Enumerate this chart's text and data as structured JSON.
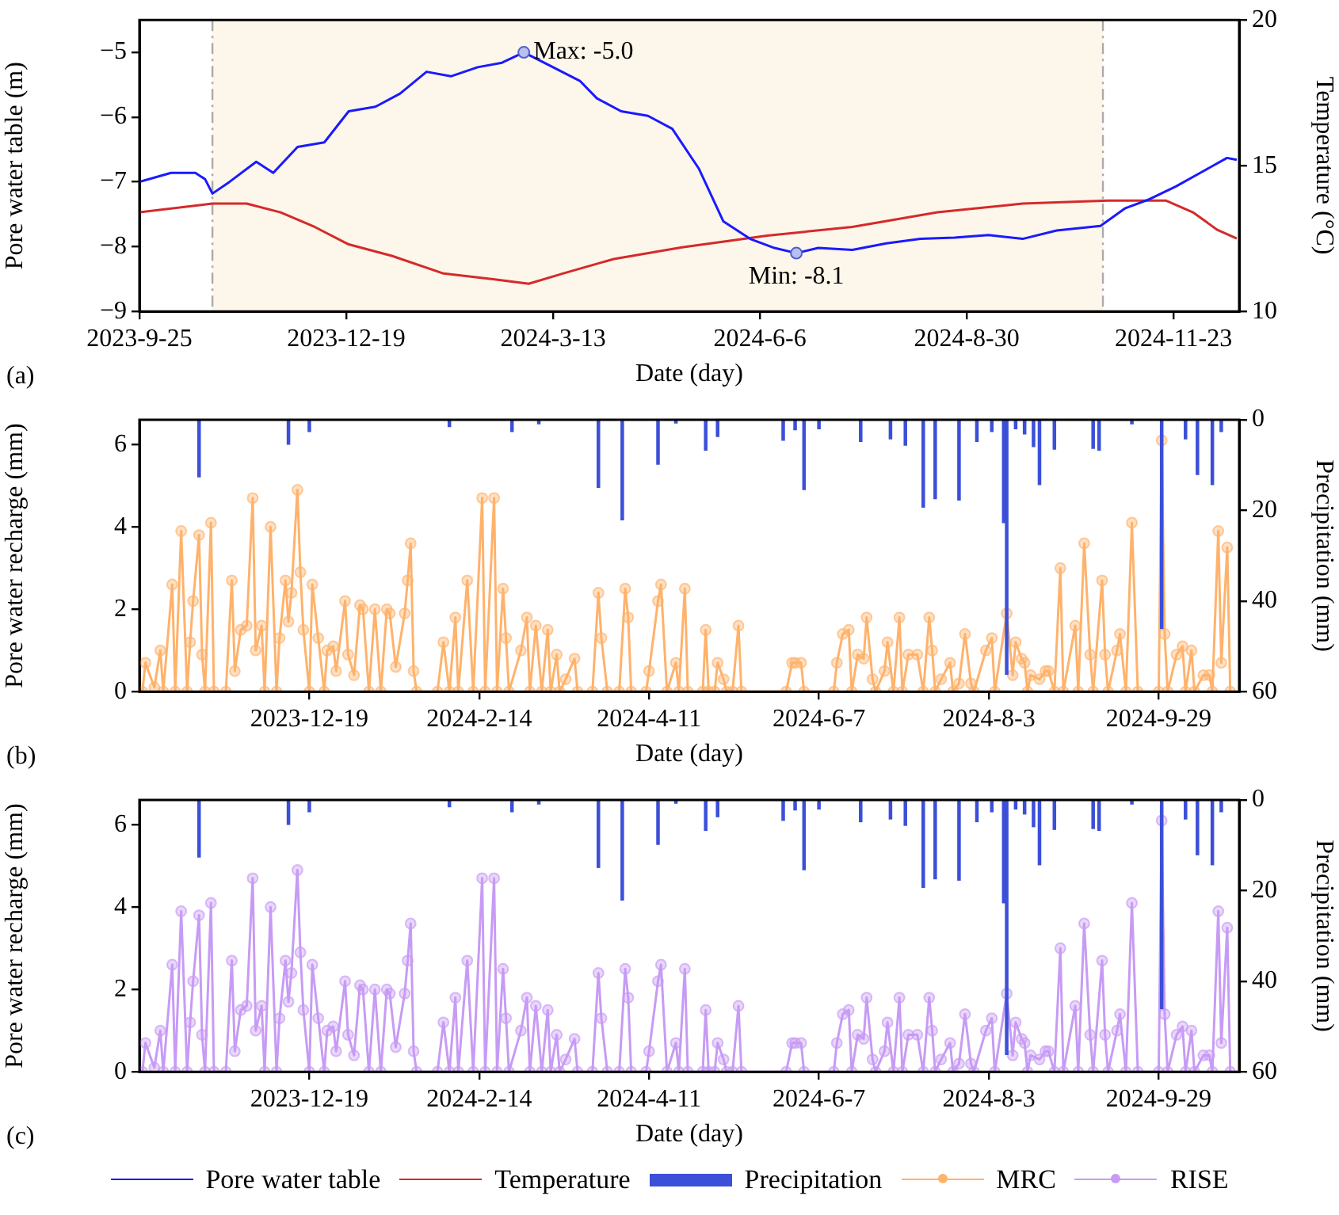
{
  "chart_data": [
    {
      "type": "line",
      "xlabel": "Date (day)",
      "ylabel": "Pore water table (m)",
      "y2label": "Temperature (°C)",
      "legend": "bottom",
      "xlim": [
        "2023-09-25",
        "2024-12-20"
      ],
      "xticks": [
        {
          "value": "2023-09-25",
          "label": "2023-9-25"
        },
        {
          "value": "2023-12-19",
          "label": "2023-12-19"
        },
        {
          "value": "2024-03-13",
          "label": "2024-3-13"
        },
        {
          "value": "2024-06-06",
          "label": "2024-6-6"
        },
        {
          "value": "2024-08-30",
          "label": "2024-8-30"
        },
        {
          "value": "2024-11-23",
          "label": "2024-11-23"
        }
      ],
      "ylim": [
        -9,
        -4.5
      ],
      "yticks": [
        {
          "value": -9,
          "label": "−9"
        },
        {
          "value": -8,
          "label": "−8"
        },
        {
          "value": -7,
          "label": "−7"
        },
        {
          "value": -6,
          "label": "−6"
        },
        {
          "value": -5,
          "label": "−5"
        }
      ],
      "y2lim": [
        10,
        20
      ],
      "y2ticks": [
        10,
        15,
        20
      ],
      "bands": [
        {
          "axis": "x",
          "from": "2023-10-25",
          "to": "2024-10-25",
          "color": "#fdf6ea"
        }
      ],
      "ref_lines": [
        {
          "axis": "x",
          "value": "2023-10-25",
          "color": "#aaaaaa",
          "line_style": "dashed"
        },
        {
          "axis": "x",
          "value": "2024-10-25",
          "color": "#aaaaaa",
          "line_style": "dashed"
        }
      ],
      "annotations": [
        {
          "text": "Max: -5.0",
          "x": "2024-03-01",
          "y": -5.0
        },
        {
          "text": "Min: -8.1",
          "x": "2024-06-21",
          "y": -8.1
        },
        "(a)"
      ],
      "series": [
        {
          "name": "Pore water table",
          "color": "#1a1aff",
          "x": [
            "2023-09-25",
            "2023-10-08",
            "2023-10-18",
            "2023-10-22",
            "2023-10-25",
            "2023-11-01",
            "2023-11-12",
            "2023-11-19",
            "2023-11-29",
            "2023-12-10",
            "2023-12-20",
            "2023-12-31",
            "2024-01-10",
            "2024-01-21",
            "2024-01-31",
            "2024-02-11",
            "2024-02-21",
            "2024-03-01",
            "2024-03-13",
            "2024-03-24",
            "2024-03-31",
            "2024-04-10",
            "2024-04-21",
            "2024-05-01",
            "2024-05-12",
            "2024-05-22",
            "2024-06-02",
            "2024-06-12",
            "2024-06-21",
            "2024-06-30",
            "2024-07-14",
            "2024-07-28",
            "2024-08-11",
            "2024-08-25",
            "2024-09-08",
            "2024-09-22",
            "2024-10-06",
            "2024-10-24",
            "2024-11-03",
            "2024-11-13",
            "2024-11-24",
            "2024-12-04",
            "2024-12-15",
            "2024-12-19"
          ],
          "values": [
            -7.0,
            -6.86,
            -6.86,
            -6.96,
            -7.18,
            -7.0,
            -6.69,
            -6.86,
            -6.46,
            -6.39,
            -5.91,
            -5.84,
            -5.64,
            -5.3,
            -5.37,
            -5.23,
            -5.16,
            -5.0,
            -5.23,
            -5.44,
            -5.71,
            -5.91,
            -5.98,
            -6.18,
            -6.8,
            -7.61,
            -7.88,
            -8.02,
            -8.1,
            -8.02,
            -8.05,
            -7.95,
            -7.88,
            -7.86,
            -7.82,
            -7.88,
            -7.75,
            -7.68,
            -7.41,
            -7.27,
            -7.07,
            -6.86,
            -6.63,
            -6.66
          ]
        },
        {
          "name": "Temperature",
          "axis": "y2",
          "color": "#d42a2a",
          "x": [
            "2023-09-25",
            "2023-10-25",
            "2023-11-08",
            "2023-11-22",
            "2023-12-06",
            "2023-12-20",
            "2024-01-07",
            "2024-01-28",
            "2024-02-18",
            "2024-03-03",
            "2024-03-17",
            "2024-04-07",
            "2024-05-05",
            "2024-06-09",
            "2024-07-14",
            "2024-08-18",
            "2024-09-22",
            "2024-10-27",
            "2024-11-20",
            "2024-12-01",
            "2024-12-11",
            "2024-12-19"
          ],
          "values": [
            13.4,
            13.7,
            13.7,
            13.4,
            12.9,
            12.3,
            11.9,
            11.3,
            11.1,
            10.95,
            11.3,
            11.8,
            12.2,
            12.6,
            12.9,
            13.4,
            13.7,
            13.8,
            13.8,
            13.4,
            12.8,
            12.5
          ]
        }
      ]
    },
    {
      "type": "line",
      "xlabel": "Date (day)",
      "ylabel": "Pore water recharge (mm)",
      "y2label": "Precipitation (mm)",
      "legend": "bottom",
      "marker": "circle",
      "xlim": [
        "2023-10-23",
        "2024-10-26"
      ],
      "xticks": [
        {
          "value": "2023-12-19",
          "label": "2023-12-19"
        },
        {
          "value": "2024-02-14",
          "label": "2024-2-14"
        },
        {
          "value": "2024-04-11",
          "label": "2024-4-11"
        },
        {
          "value": "2024-06-07",
          "label": "2024-6-7"
        },
        {
          "value": "2024-08-03",
          "label": "2024-8-3"
        },
        {
          "value": "2024-09-29",
          "label": "2024-9-29"
        }
      ],
      "ylim": [
        0,
        6.6
      ],
      "yticks": [
        0,
        2,
        4,
        6
      ],
      "y2lim": [
        60,
        0
      ],
      "y2ticks": [
        0,
        20,
        40,
        60
      ],
      "annotations": [
        "(b)"
      ],
      "x": [
        "2023-10-24",
        "2023-10-25",
        "2023-10-28",
        "2023-10-30",
        "2023-10-31",
        "2023-11-03",
        "2023-11-04",
        "2023-11-06",
        "2023-11-08",
        "2023-11-09",
        "2023-11-10",
        "2023-11-12",
        "2023-11-13",
        "2023-11-14",
        "2023-11-16",
        "2023-11-17",
        "2023-11-21",
        "2023-11-23",
        "2023-11-24",
        "2023-11-26",
        "2023-11-28",
        "2023-11-30",
        "2023-12-01",
        "2023-12-03",
        "2023-12-04",
        "2023-12-06",
        "2023-12-08",
        "2023-12-09",
        "2023-12-11",
        "2023-12-12",
        "2023-12-13",
        "2023-12-15",
        "2023-12-16",
        "2023-12-17",
        "2023-12-19",
        "2023-12-20",
        "2023-12-22",
        "2023-12-24",
        "2023-12-25",
        "2023-12-27",
        "2023-12-28",
        "2023-12-31",
        "2024-01-01",
        "2024-01-03",
        "2024-01-05",
        "2024-01-06",
        "2024-01-08",
        "2024-01-10",
        "2024-01-12",
        "2024-01-14",
        "2024-01-15",
        "2024-01-17",
        "2024-01-20",
        "2024-01-21",
        "2024-01-22",
        "2024-01-23",
        "2024-01-24",
        "2024-01-31",
        "2024-02-02",
        "2024-02-04",
        "2024-02-06",
        "2024-02-07",
        "2024-02-10",
        "2024-02-12",
        "2024-02-15",
        "2024-02-16",
        "2024-02-19",
        "2024-02-20",
        "2024-02-22",
        "2024-02-23",
        "2024-02-24",
        "2024-02-28",
        "2024-03-01",
        "2024-03-02",
        "2024-03-04",
        "2024-03-06",
        "2024-03-08",
        "2024-03-09",
        "2024-03-11",
        "2024-03-12",
        "2024-03-14",
        "2024-03-17",
        "2024-03-18",
        "2024-03-23",
        "2024-03-25",
        "2024-03-26",
        "2024-03-28",
        "2024-04-01",
        "2024-04-03",
        "2024-04-04",
        "2024-04-05",
        "2024-04-10",
        "2024-04-11",
        "2024-04-14",
        "2024-04-15",
        "2024-04-17",
        "2024-04-20",
        "2024-04-21",
        "2024-04-23",
        "2024-04-24",
        "2024-04-29",
        "2024-04-30",
        "2024-05-01",
        "2024-05-03",
        "2024-05-04",
        "2024-05-06",
        "2024-05-07",
        "2024-05-09",
        "2024-05-11",
        "2024-05-12",
        "2024-05-27",
        "2024-05-29",
        "2024-05-30",
        "2024-06-01",
        "2024-06-02",
        "2024-06-12",
        "2024-06-13",
        "2024-06-15",
        "2024-06-17",
        "2024-06-18",
        "2024-06-20",
        "2024-06-22",
        "2024-06-23",
        "2024-06-25",
        "2024-06-26",
        "2024-06-29",
        "2024-06-30",
        "2024-07-02",
        "2024-07-04",
        "2024-07-05",
        "2024-07-07",
        "2024-07-10",
        "2024-07-12",
        "2024-07-14",
        "2024-07-15",
        "2024-07-16",
        "2024-07-18",
        "2024-07-21",
        "2024-07-22",
        "2024-07-24",
        "2024-07-26",
        "2024-07-28",
        "2024-07-29",
        "2024-08-02",
        "2024-08-04",
        "2024-08-05",
        "2024-08-09",
        "2024-08-11",
        "2024-08-12",
        "2024-08-14",
        "2024-08-15",
        "2024-08-16",
        "2024-08-17",
        "2024-08-20",
        "2024-08-22",
        "2024-08-23",
        "2024-08-25",
        "2024-08-27",
        "2024-08-28",
        "2024-09-01",
        "2024-09-02",
        "2024-09-04",
        "2024-09-06",
        "2024-09-07",
        "2024-09-10",
        "2024-09-11",
        "2024-09-12",
        "2024-09-15",
        "2024-09-16",
        "2024-09-18",
        "2024-09-20",
        "2024-09-22",
        "2024-09-29",
        "2024-09-30",
        "2024-10-01",
        "2024-10-02",
        "2024-10-05",
        "2024-10-07",
        "2024-10-08",
        "2024-10-10",
        "2024-10-11",
        "2024-10-14",
        "2024-10-16",
        "2024-10-17",
        "2024-10-19",
        "2024-10-20",
        "2024-10-22",
        "2024-10-23"
      ],
      "series": [
        {
          "name": "Precipitation",
          "type": "bar",
          "axis": "y2",
          "color": "#3b4fd8",
          "x": [
            "2023-11-12",
            "2023-12-12",
            "2023-12-19",
            "2024-02-04",
            "2024-02-25",
            "2024-03-05",
            "2024-03-25",
            "2024-04-02",
            "2024-04-14",
            "2024-04-20",
            "2024-04-30",
            "2024-05-04",
            "2024-05-26",
            "2024-05-30",
            "2024-06-02",
            "2024-06-07",
            "2024-06-21",
            "2024-07-01",
            "2024-07-06",
            "2024-07-12",
            "2024-07-16",
            "2024-07-24",
            "2024-07-30",
            "2024-08-04",
            "2024-08-08",
            "2024-08-09",
            "2024-08-12",
            "2024-08-15",
            "2024-08-18",
            "2024-08-20",
            "2024-08-25",
            "2024-09-07",
            "2024-09-09",
            "2024-09-20",
            "2024-09-30",
            "2024-10-08",
            "2024-10-12",
            "2024-10-17",
            "2024-10-20"
          ],
          "values": [
            12.6,
            5.4,
            2.6,
            1.5,
            2.6,
            0.9,
            14.9,
            22.1,
            9.8,
            0.7,
            6.7,
            3.7,
            4.5,
            2.2,
            15.4,
            2.0,
            4.8,
            4.2,
            5.6,
            19.3,
            17.4,
            17.7,
            4.8,
            2.6,
            22.7,
            56.2,
            2.0,
            3.1,
            5.9,
            14.3,
            6.5,
            6.3,
            6.7,
            0.9,
            46.1,
            4.2,
            12.1,
            14.3,
            2.6
          ]
        },
        {
          "name": "MRC",
          "color": "#ffb26b",
          "values": [
            0,
            0.7,
            0.1,
            1.0,
            0,
            2.6,
            0,
            3.9,
            0,
            1.2,
            2.2,
            3.8,
            0.9,
            0,
            4.1,
            0,
            0,
            2.7,
            0.5,
            1.5,
            1.6,
            4.7,
            1.0,
            1.6,
            0,
            4.0,
            0,
            1.3,
            2.7,
            1.7,
            2.4,
            4.9,
            2.9,
            1.5,
            0,
            2.6,
            1.3,
            0,
            1.0,
            1.1,
            0.5,
            2.2,
            0.9,
            0.4,
            2.1,
            2.0,
            0,
            2.0,
            0,
            2.0,
            1.9,
            0.6,
            1.9,
            2.7,
            3.6,
            0.5,
            0,
            0,
            1.2,
            0,
            1.8,
            0,
            2.7,
            0,
            4.7,
            0,
            4.7,
            0,
            2.5,
            1.3,
            0,
            1.0,
            1.8,
            0,
            1.6,
            0,
            1.5,
            0,
            0.9,
            0,
            0.3,
            0.8,
            0,
            0,
            2.4,
            1.3,
            0,
            0,
            2.5,
            1.8,
            0,
            0,
            0.5,
            2.2,
            2.6,
            0,
            0.7,
            0,
            2.5,
            0,
            0,
            1.5,
            0,
            0,
            0.7,
            0.3,
            0,
            0,
            1.6,
            0,
            0,
            0.7,
            0.7,
            0.7,
            0,
            0,
            0.7,
            1.4,
            1.5,
            0,
            0.9,
            0.8,
            1.8,
            0.3,
            0,
            0.5,
            1.2,
            0,
            1.8,
            0,
            0.9,
            0.9,
            0,
            1.8,
            1.0,
            0,
            0.3,
            0.7,
            0,
            0.2,
            1.4,
            0.2,
            0,
            1.0,
            1.3,
            0,
            1.9,
            0.4,
            1.2,
            0.8,
            0.7,
            0,
            0.4,
            0.3,
            0.5,
            0.5,
            0,
            3.0,
            0,
            1.6,
            0,
            3.6,
            0.9,
            0,
            2.7,
            0.9,
            0,
            1.0,
            1.4,
            0,
            4.1,
            0,
            0,
            6.1,
            1.4,
            0,
            0.9,
            1.1,
            0,
            1.0,
            0,
            0.4,
            0.4,
            0,
            3.9,
            0.7,
            3.5,
            0
          ]
        }
      ]
    },
    {
      "type": "line",
      "xlabel": "Date (day)",
      "ylabel": "Pore water recharge (mm)",
      "y2label": "Precipitation (mm)",
      "legend": "bottom",
      "marker": "circle",
      "xlim": [
        "2023-10-23",
        "2024-10-26"
      ],
      "xticks": [
        {
          "value": "2023-12-19",
          "label": "2023-12-19"
        },
        {
          "value": "2024-02-14",
          "label": "2024-2-14"
        },
        {
          "value": "2024-04-11",
          "label": "2024-4-11"
        },
        {
          "value": "2024-06-07",
          "label": "2024-6-7"
        },
        {
          "value": "2024-08-03",
          "label": "2024-8-3"
        },
        {
          "value": "2024-09-29",
          "label": "2024-9-29"
        }
      ],
      "ylim": [
        0,
        6.6
      ],
      "yticks": [
        0,
        2,
        4,
        6
      ],
      "y2lim": [
        60,
        0
      ],
      "y2ticks": [
        0,
        20,
        40,
        60
      ],
      "annotations": [
        "(c)"
      ],
      "x": [
        "2023-10-24",
        "2023-10-25",
        "2023-10-28",
        "2023-10-30",
        "2023-10-31",
        "2023-11-03",
        "2023-11-04",
        "2023-11-06",
        "2023-11-08",
        "2023-11-09",
        "2023-11-10",
        "2023-11-12",
        "2023-11-13",
        "2023-11-14",
        "2023-11-16",
        "2023-11-17",
        "2023-11-21",
        "2023-11-23",
        "2023-11-24",
        "2023-11-26",
        "2023-11-28",
        "2023-11-30",
        "2023-12-01",
        "2023-12-03",
        "2023-12-04",
        "2023-12-06",
        "2023-12-08",
        "2023-12-09",
        "2023-12-11",
        "2023-12-12",
        "2023-12-13",
        "2023-12-15",
        "2023-12-16",
        "2023-12-17",
        "2023-12-19",
        "2023-12-20",
        "2023-12-22",
        "2023-12-24",
        "2023-12-25",
        "2023-12-27",
        "2023-12-28",
        "2023-12-31",
        "2024-01-01",
        "2024-01-03",
        "2024-01-05",
        "2024-01-06",
        "2024-01-08",
        "2024-01-10",
        "2024-01-12",
        "2024-01-14",
        "2024-01-15",
        "2024-01-17",
        "2024-01-20",
        "2024-01-21",
        "2024-01-22",
        "2024-01-23",
        "2024-01-24",
        "2024-01-31",
        "2024-02-02",
        "2024-02-04",
        "2024-02-06",
        "2024-02-07",
        "2024-02-10",
        "2024-02-12",
        "2024-02-15",
        "2024-02-16",
        "2024-02-19",
        "2024-02-20",
        "2024-02-22",
        "2024-02-23",
        "2024-02-24",
        "2024-02-28",
        "2024-03-01",
        "2024-03-02",
        "2024-03-04",
        "2024-03-06",
        "2024-03-08",
        "2024-03-09",
        "2024-03-11",
        "2024-03-12",
        "2024-03-14",
        "2024-03-17",
        "2024-03-18",
        "2024-03-23",
        "2024-03-25",
        "2024-03-26",
        "2024-03-28",
        "2024-04-01",
        "2024-04-03",
        "2024-04-04",
        "2024-04-05",
        "2024-04-10",
        "2024-04-11",
        "2024-04-14",
        "2024-04-15",
        "2024-04-17",
        "2024-04-20",
        "2024-04-21",
        "2024-04-23",
        "2024-04-24",
        "2024-04-29",
        "2024-04-30",
        "2024-05-01",
        "2024-05-03",
        "2024-05-04",
        "2024-05-06",
        "2024-05-07",
        "2024-05-09",
        "2024-05-11",
        "2024-05-12",
        "2024-05-27",
        "2024-05-29",
        "2024-05-30",
        "2024-06-01",
        "2024-06-02",
        "2024-06-12",
        "2024-06-13",
        "2024-06-15",
        "2024-06-17",
        "2024-06-18",
        "2024-06-20",
        "2024-06-22",
        "2024-06-23",
        "2024-06-25",
        "2024-06-26",
        "2024-06-29",
        "2024-06-30",
        "2024-07-02",
        "2024-07-04",
        "2024-07-05",
        "2024-07-07",
        "2024-07-10",
        "2024-07-12",
        "2024-07-14",
        "2024-07-15",
        "2024-07-16",
        "2024-07-18",
        "2024-07-21",
        "2024-07-22",
        "2024-07-24",
        "2024-07-26",
        "2024-07-28",
        "2024-07-29",
        "2024-08-02",
        "2024-08-04",
        "2024-08-05",
        "2024-08-09",
        "2024-08-11",
        "2024-08-12",
        "2024-08-14",
        "2024-08-15",
        "2024-08-16",
        "2024-08-17",
        "2024-08-20",
        "2024-08-22",
        "2024-08-23",
        "2024-08-25",
        "2024-08-27",
        "2024-08-28",
        "2024-09-01",
        "2024-09-02",
        "2024-09-04",
        "2024-09-06",
        "2024-09-07",
        "2024-09-10",
        "2024-09-11",
        "2024-09-12",
        "2024-09-15",
        "2024-09-16",
        "2024-09-18",
        "2024-09-20",
        "2024-09-22",
        "2024-09-29",
        "2024-09-30",
        "2024-10-01",
        "2024-10-02",
        "2024-10-05",
        "2024-10-07",
        "2024-10-08",
        "2024-10-10",
        "2024-10-11",
        "2024-10-14",
        "2024-10-16",
        "2024-10-17",
        "2024-10-19",
        "2024-10-20",
        "2024-10-22",
        "2024-10-23"
      ],
      "series": [
        {
          "name": "Precipitation",
          "type": "bar",
          "axis": "y2",
          "color": "#3b4fd8",
          "x": [
            "2023-11-12",
            "2023-12-12",
            "2023-12-19",
            "2024-02-04",
            "2024-02-25",
            "2024-03-05",
            "2024-03-25",
            "2024-04-02",
            "2024-04-14",
            "2024-04-20",
            "2024-04-30",
            "2024-05-04",
            "2024-05-26",
            "2024-05-30",
            "2024-06-02",
            "2024-06-07",
            "2024-06-21",
            "2024-07-01",
            "2024-07-06",
            "2024-07-12",
            "2024-07-16",
            "2024-07-24",
            "2024-07-30",
            "2024-08-04",
            "2024-08-08",
            "2024-08-09",
            "2024-08-12",
            "2024-08-15",
            "2024-08-18",
            "2024-08-20",
            "2024-08-25",
            "2024-09-07",
            "2024-09-09",
            "2024-09-20",
            "2024-09-30",
            "2024-10-08",
            "2024-10-12",
            "2024-10-17",
            "2024-10-20"
          ],
          "values": [
            12.6,
            5.4,
            2.6,
            1.5,
            2.6,
            0.9,
            14.9,
            22.1,
            9.8,
            0.7,
            6.7,
            3.7,
            4.5,
            2.2,
            15.4,
            2.0,
            4.8,
            4.2,
            5.6,
            19.3,
            17.4,
            17.7,
            4.8,
            2.6,
            22.7,
            56.2,
            2.0,
            3.1,
            5.9,
            14.3,
            6.5,
            6.3,
            6.7,
            0.9,
            46.1,
            4.2,
            12.1,
            14.3,
            2.6
          ]
        },
        {
          "name": "RISE",
          "color": "#c79bf5",
          "values": [
            0,
            0.7,
            0.1,
            1.0,
            0,
            2.6,
            0,
            3.9,
            0,
            1.2,
            2.2,
            3.8,
            0.9,
            0,
            4.1,
            0,
            0,
            2.7,
            0.5,
            1.5,
            1.6,
            4.7,
            1.0,
            1.6,
            0,
            4.0,
            0,
            1.3,
            2.7,
            1.7,
            2.4,
            4.9,
            2.9,
            1.5,
            0,
            2.6,
            1.3,
            0,
            1.0,
            1.1,
            0.5,
            2.2,
            0.9,
            0.4,
            2.1,
            2.0,
            0,
            2.0,
            0,
            2.0,
            1.9,
            0.6,
            1.9,
            2.7,
            3.6,
            0.5,
            0,
            0,
            1.2,
            0,
            1.8,
            0,
            2.7,
            0,
            4.7,
            0,
            4.7,
            0,
            2.5,
            1.3,
            0,
            1.0,
            1.8,
            0,
            1.6,
            0,
            1.5,
            0,
            0.9,
            0,
            0.3,
            0.8,
            0,
            0,
            2.4,
            1.3,
            0,
            0,
            2.5,
            1.8,
            0,
            0,
            0.5,
            2.2,
            2.6,
            0,
            0.7,
            0,
            2.5,
            0,
            0,
            1.5,
            0,
            0,
            0.7,
            0.3,
            0,
            0,
            1.6,
            0,
            0,
            0.7,
            0.7,
            0.7,
            0,
            0,
            0.7,
            1.4,
            1.5,
            0,
            0.9,
            0.8,
            1.8,
            0.3,
            0,
            0.5,
            1.2,
            0,
            1.8,
            0,
            0.9,
            0.9,
            0,
            1.8,
            1.0,
            0,
            0.3,
            0.7,
            0,
            0.2,
            1.4,
            0.2,
            0,
            1.0,
            1.3,
            0,
            1.9,
            0.4,
            1.2,
            0.8,
            0.7,
            0,
            0.4,
            0.3,
            0.5,
            0.5,
            0,
            3.0,
            0,
            1.6,
            0,
            3.6,
            0.9,
            0,
            2.7,
            0.9,
            0,
            1.0,
            1.4,
            0,
            4.1,
            0,
            0,
            6.1,
            1.4,
            0,
            0.9,
            1.1,
            0,
            1.0,
            0,
            0.4,
            0.4,
            0,
            3.9,
            0.7,
            3.5,
            0
          ]
        }
      ]
    }
  ]
}
